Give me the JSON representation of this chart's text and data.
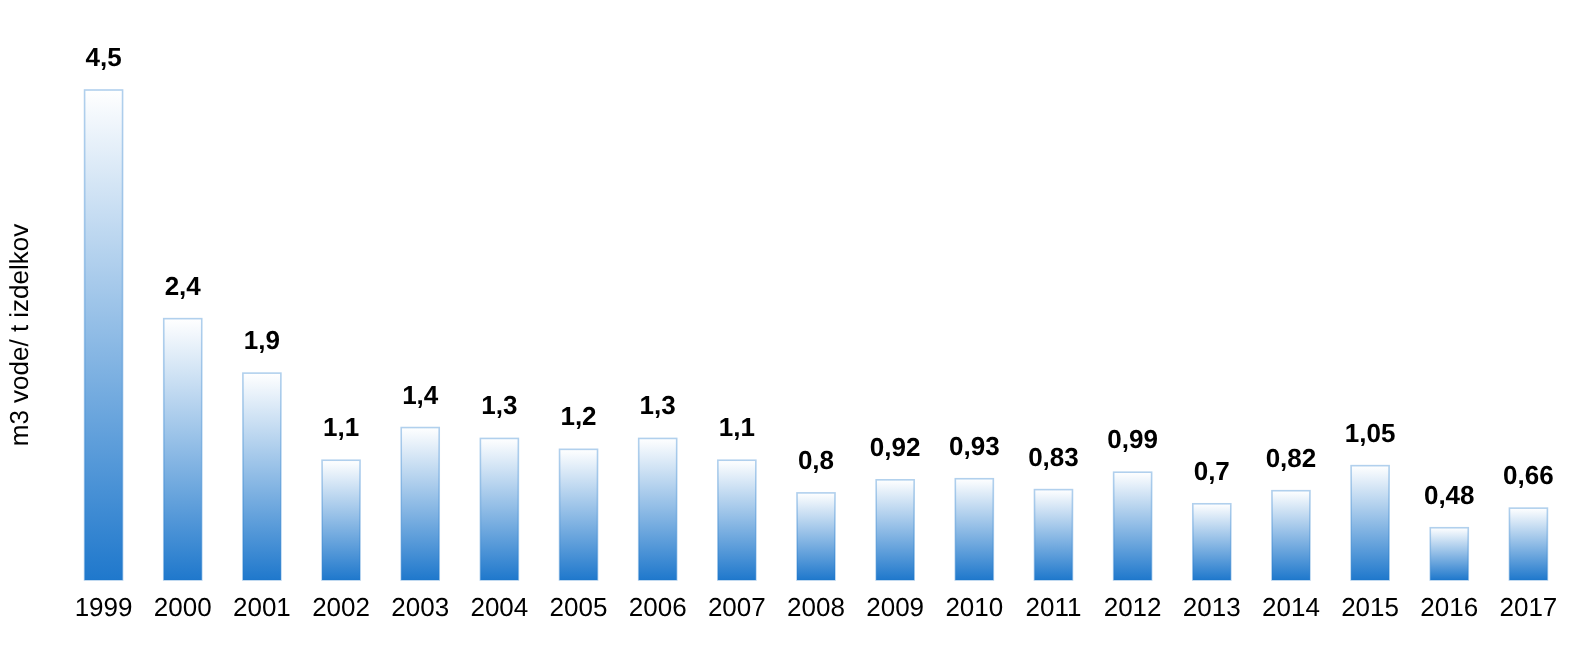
{
  "chart_data": {
    "type": "bar",
    "ylabel": "m3 vode/ t izdelkov",
    "categories": [
      "1999",
      "2000",
      "2001",
      "2002",
      "2003",
      "2004",
      "2005",
      "2006",
      "2007",
      "2008",
      "2009",
      "2010",
      "2011",
      "2012",
      "2013",
      "2014",
      "2015",
      "2016",
      "2017"
    ],
    "values": [
      4.5,
      2.4,
      1.9,
      1.1,
      1.4,
      1.3,
      1.2,
      1.3,
      1.1,
      0.8,
      0.92,
      0.93,
      0.83,
      0.99,
      0.7,
      0.82,
      1.05,
      0.48,
      0.66
    ],
    "value_labels": [
      "4,5",
      "2,4",
      "1,9",
      "1,1",
      "1,4",
      "1,3",
      "1,2",
      "1,3",
      "1,1",
      "0,8",
      "0,92",
      "0,93",
      "0,83",
      "0,99",
      "0,7",
      "0,82",
      "1,05",
      "0,48",
      "0,66"
    ],
    "color": "#1f78cc"
  }
}
